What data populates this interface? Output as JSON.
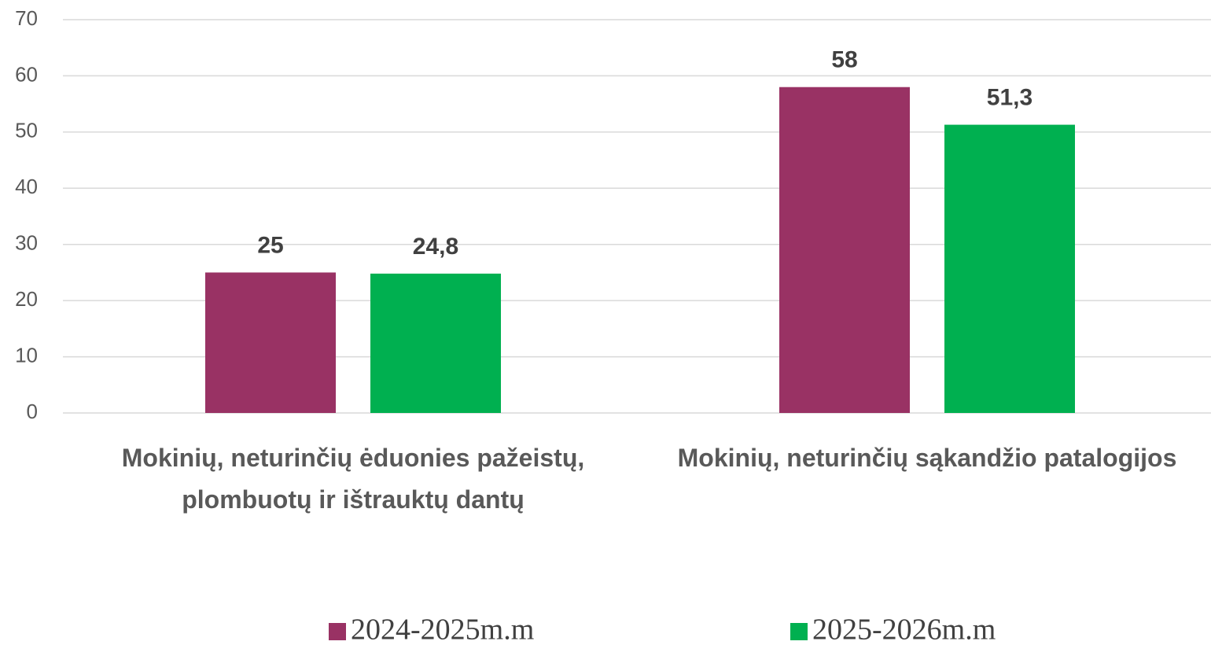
{
  "chart_data": {
    "type": "bar",
    "categories": [
      "Mokinių, neturinčių ėduonies pažeistų, plombuotų ir ištrauktų dantų",
      "Mokinių, neturinčių sąkandžio patalogijos"
    ],
    "series": [
      {
        "name": "2024-2025m.m",
        "color": "#993264",
        "values": [
          25,
          58
        ],
        "value_labels": [
          "25",
          "58"
        ]
      },
      {
        "name": "2025-2026m.m",
        "color": "#00b050",
        "values": [
          24.8,
          51.3
        ],
        "value_labels": [
          "24,8",
          "51,3"
        ]
      }
    ],
    "ylim": [
      0,
      70
    ],
    "yticks": [
      0,
      10,
      20,
      30,
      40,
      50,
      60,
      70
    ],
    "grid": true,
    "legend": "bottom"
  }
}
